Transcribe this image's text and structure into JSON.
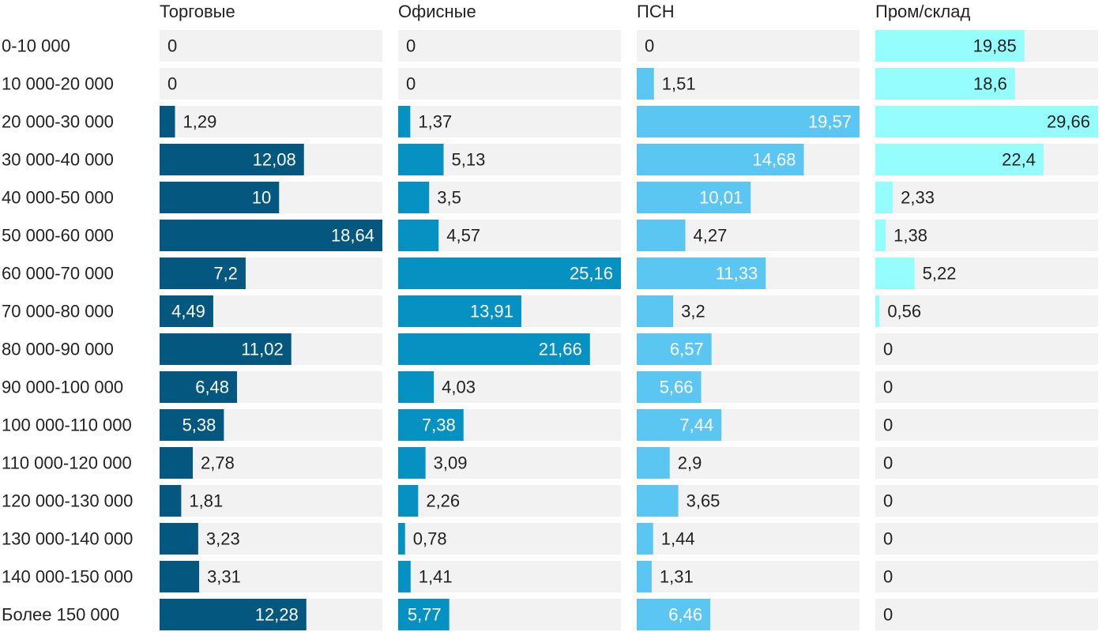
{
  "chart_data": {
    "type": "bar",
    "orientation": "horizontal",
    "layout": "small-multiples",
    "categories": [
      "0-10 000",
      "10 000-20 000",
      "20 000-30 000",
      "30 000-40 000",
      "40 000-50 000",
      "50 000-60 000",
      "60 000-70 000",
      "70 000-80 000",
      "80 000-90 000",
      "90 000-100 000",
      "100 000-110 000",
      "110 000-120 000",
      "120 000-130 000",
      "130 000-140 000",
      "140 000-150 000",
      "Более 150 000"
    ],
    "series": [
      {
        "name": "Торговые",
        "color": "#04587f",
        "labels": [
          "0",
          "0",
          "1,29",
          "12,08",
          "10",
          "18,64",
          "7,2",
          "4,49",
          "11,02",
          "6,48",
          "5,38",
          "2,78",
          "1,81",
          "3,23",
          "3,31",
          "12,28"
        ],
        "values": [
          0,
          0,
          1.29,
          12.08,
          10,
          18.64,
          7.2,
          4.49,
          11.02,
          6.48,
          5.38,
          2.78,
          1.81,
          3.23,
          3.31,
          12.28
        ]
      },
      {
        "name": "Офисные",
        "color": "#0591c1",
        "labels": [
          "0",
          "0",
          "1,37",
          "5,13",
          "3,5",
          "4,57",
          "25,16",
          "13,91",
          "21,66",
          "4,03",
          "7,38",
          "3,09",
          "2,26",
          "0,78",
          "1,41",
          "5,77"
        ],
        "values": [
          0,
          0,
          1.37,
          5.13,
          3.5,
          4.57,
          25.16,
          13.91,
          21.66,
          4.03,
          7.38,
          3.09,
          2.26,
          0.78,
          1.41,
          5.77
        ]
      },
      {
        "name": "ПСН",
        "color": "#5cc6f2",
        "labels": [
          "0",
          "1,51",
          "19,57",
          "14,68",
          "10,01",
          "4,27",
          "11,33",
          "3,2",
          "6,57",
          "5,66",
          "7,44",
          "2,9",
          "3,65",
          "1,44",
          "1,31",
          "6,46"
        ],
        "values": [
          0,
          1.51,
          19.57,
          14.68,
          10.01,
          4.27,
          11.33,
          3.2,
          6.57,
          5.66,
          7.44,
          2.9,
          3.65,
          1.44,
          1.31,
          6.46
        ]
      },
      {
        "name": "Пром/склад",
        "color": "#96fdfd",
        "labels": [
          "19,85",
          "18,6",
          "29,66",
          "22,4",
          "2,33",
          "1,38",
          "5,22",
          "0,56",
          "0",
          "0",
          "0",
          "0",
          "0",
          "0",
          "0",
          "0"
        ],
        "values": [
          19.85,
          18.6,
          29.66,
          22.4,
          2.33,
          1.38,
          5.22,
          0.56,
          0,
          0,
          0,
          0,
          0,
          0,
          0,
          0
        ]
      }
    ],
    "panel_background": "#f2f2f2",
    "title": "",
    "xlabel": "",
    "ylabel": ""
  }
}
